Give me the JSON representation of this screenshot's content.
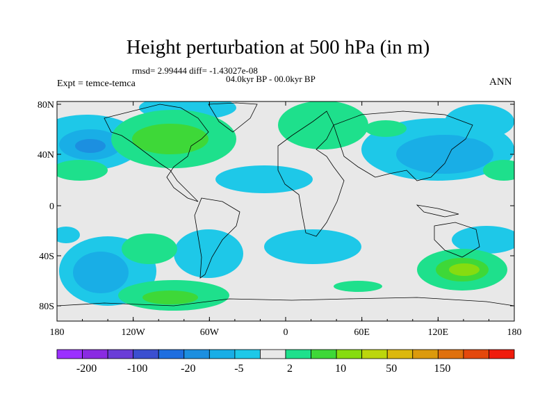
{
  "title": "Height perturbation at 500 hPa (in m)",
  "rmsd_text": "rmsd= 2.99444 diff= -1.43027e-08",
  "period_text": "04.0kyr BP - 00.0kyr BP",
  "expt_text": "Expt = temce-temca",
  "season": "ANN",
  "lat_labels": [
    "80N",
    "40N",
    "0",
    "40S",
    "80S"
  ],
  "lon_labels": [
    "180",
    "120W",
    "60W",
    "0",
    "60E",
    "120E",
    "180"
  ],
  "colorbar": {
    "labels": [
      "-200",
      "-100",
      "-20",
      "-5",
      "2",
      "10",
      "50",
      "150"
    ],
    "colors": [
      "#9b30ff",
      "#8a2be2",
      "#6a3dd8",
      "#3b4fd0",
      "#1e6ee0",
      "#1c8fe0",
      "#19aee6",
      "#1ec8e8",
      "#e8e8e8",
      "#1ee08c",
      "#3ed838",
      "#86dc10",
      "#bcd60c",
      "#dcb80c",
      "#dc9a0c",
      "#e0700c",
      "#e4480c",
      "#f01c0c"
    ]
  },
  "map_colors": {
    "land_bg": "#e8e8e8",
    "blue_light": "#1ec8e8",
    "blue_mid": "#19aee6",
    "blue_dark": "#1c8fe0",
    "green": "#1ee08c",
    "green_dark": "#3ed838",
    "yellow": "#86dc10",
    "coast": "#000000"
  }
}
